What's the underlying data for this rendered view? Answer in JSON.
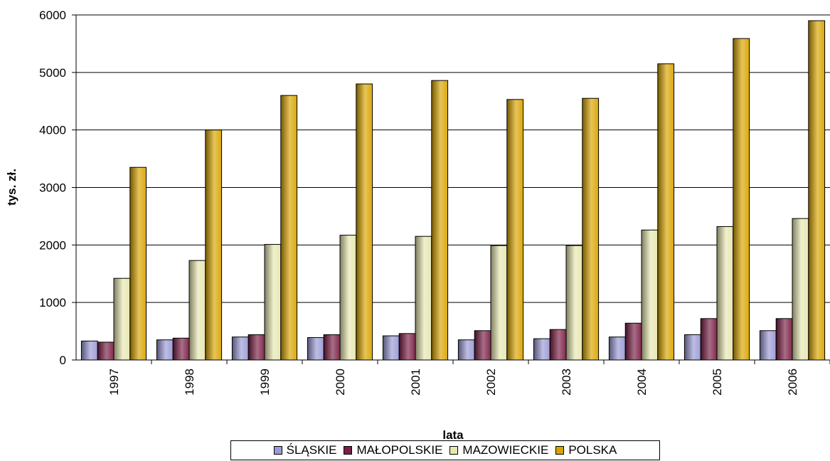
{
  "chart_data": {
    "type": "bar",
    "title": "",
    "xlabel": "lata",
    "ylabel": "tys. zł.",
    "ylim": [
      0,
      6000
    ],
    "yticks": [
      0,
      1000,
      2000,
      3000,
      4000,
      5000,
      6000
    ],
    "grid": true,
    "legend_position": "bottom",
    "categories": [
      "1997",
      "1998",
      "1999",
      "2000",
      "2001",
      "2002",
      "2003",
      "2004",
      "2005",
      "2006"
    ],
    "series": [
      {
        "name": "ŚLĄSKIE",
        "color": "#9A9AD6",
        "values": [
          330,
          350,
          400,
          390,
          420,
          350,
          370,
          400,
          440,
          510
        ]
      },
      {
        "name": "MAŁOPOLSKIE",
        "color": "#7A1F45",
        "values": [
          310,
          380,
          440,
          440,
          460,
          510,
          530,
          640,
          720,
          720
        ]
      },
      {
        "name": "MAZOWIECKIE",
        "color": "#E6E6B0",
        "values": [
          1420,
          1730,
          2010,
          2170,
          2150,
          1990,
          1990,
          2260,
          2320,
          2460
        ]
      },
      {
        "name": "POLSKA",
        "color": "#D9A400",
        "values": [
          3350,
          4000,
          4600,
          4800,
          4860,
          4530,
          4550,
          5150,
          5590,
          5900
        ]
      }
    ]
  }
}
